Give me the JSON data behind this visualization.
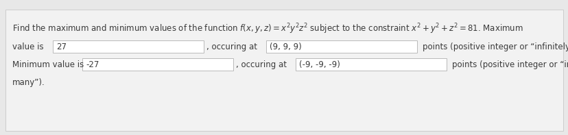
{
  "bg_color": "#e8e8e8",
  "panel_color": "#f2f2f2",
  "font_size": 8.5,
  "text_color": "#3a3a3a",
  "box_color": "#ffffff",
  "box_edge_color": "#b0b0b0",
  "line2_value": "27",
  "line2_point": "(9, 9, 9)",
  "line3_value": "-27",
  "line3_point": "(-9, -9, -9)"
}
